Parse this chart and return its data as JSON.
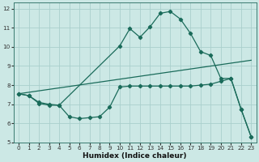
{
  "xlabel": "Humidex (Indice chaleur)",
  "background_color": "#cce8e5",
  "grid_color": "#aacfcc",
  "line_color": "#1a6b5a",
  "xlim": [
    -0.5,
    23.5
  ],
  "ylim": [
    5,
    12.3
  ],
  "yticks": [
    5,
    6,
    7,
    8,
    9,
    10,
    11,
    12
  ],
  "xticks": [
    0,
    1,
    2,
    3,
    4,
    5,
    6,
    7,
    8,
    9,
    10,
    11,
    12,
    13,
    14,
    15,
    16,
    17,
    18,
    19,
    20,
    21,
    22,
    23
  ],
  "series1_x": [
    0,
    1,
    2,
    3,
    4,
    10,
    11,
    12,
    13,
    14,
    15,
    16,
    17,
    18,
    19,
    20,
    21,
    22,
    23
  ],
  "series1_y": [
    7.55,
    7.45,
    7.05,
    6.95,
    6.95,
    10.05,
    10.95,
    10.5,
    11.05,
    11.75,
    11.85,
    11.45,
    10.7,
    9.75,
    9.55,
    8.35,
    8.35,
    6.75,
    5.3
  ],
  "series2_x": [
    0,
    1,
    2,
    3,
    4,
    5,
    6,
    7,
    8,
    9,
    10,
    11,
    12,
    13,
    14,
    15,
    16,
    17,
    18,
    19,
    20,
    21,
    22,
    23
  ],
  "series2_y": [
    7.55,
    7.45,
    7.1,
    7.0,
    6.95,
    6.35,
    6.25,
    6.3,
    6.35,
    6.85,
    7.9,
    7.95,
    7.95,
    7.95,
    7.95,
    7.95,
    7.95,
    7.95,
    8.0,
    8.05,
    8.2,
    8.35,
    6.75,
    5.3
  ],
  "series3_x": [
    0,
    23
  ],
  "series3_y": [
    7.55,
    9.3
  ]
}
